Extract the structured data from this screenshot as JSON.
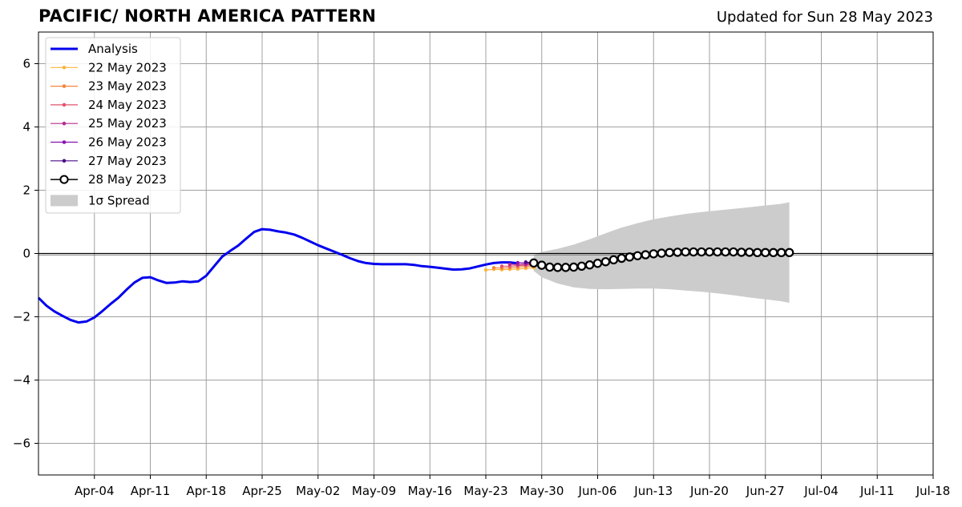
{
  "header": {
    "title": "PACIFIC/ NORTH AMERICA PATTERN",
    "updated": "Updated for Sun 28 May 2023"
  },
  "chart_data": {
    "type": "line",
    "title": "PACIFIC/ NORTH AMERICA PATTERN",
    "subtitle": "Updated for Sun 28 May 2023",
    "xlabel": "",
    "ylabel": "",
    "x_unit": "date",
    "xlim": [
      "2023-03-28",
      "2023-07-18"
    ],
    "ylim": [
      -7,
      7
    ],
    "x_ticks": [
      "Apr-04",
      "Apr-11",
      "Apr-18",
      "Apr-25",
      "May-02",
      "May-09",
      "May-16",
      "May-23",
      "May-30",
      "Jun-06",
      "Jun-13",
      "Jun-20",
      "Jun-27",
      "Jul-04",
      "Jul-11",
      "Jul-18"
    ],
    "x_tick_dates": [
      "2023-04-04",
      "2023-04-11",
      "2023-04-18",
      "2023-04-25",
      "2023-05-02",
      "2023-05-09",
      "2023-05-16",
      "2023-05-23",
      "2023-05-30",
      "2023-06-06",
      "2023-06-13",
      "2023-06-20",
      "2023-06-27",
      "2023-07-04",
      "2023-07-11",
      "2023-07-18"
    ],
    "y_ticks": [
      6,
      4,
      2,
      0,
      -2,
      -4,
      -6
    ],
    "y_tick_labels": [
      "6",
      "4",
      "2",
      "0",
      "−2",
      "−4",
      "−6"
    ],
    "grid": true,
    "legend_position": "top-left",
    "zero_line": 0,
    "series": [
      {
        "name": "Analysis",
        "color": "#0000ee",
        "x": [
          "2023-03-28",
          "2023-03-29",
          "2023-03-30",
          "2023-03-31",
          "2023-04-01",
          "2023-04-02",
          "2023-04-03",
          "2023-04-04",
          "2023-04-05",
          "2023-04-06",
          "2023-04-07",
          "2023-04-08",
          "2023-04-09",
          "2023-04-10",
          "2023-04-11",
          "2023-04-12",
          "2023-04-13",
          "2023-04-14",
          "2023-04-15",
          "2023-04-16",
          "2023-04-17",
          "2023-04-18",
          "2023-04-19",
          "2023-04-20",
          "2023-04-21",
          "2023-04-22",
          "2023-04-23",
          "2023-04-24",
          "2023-04-25",
          "2023-04-26",
          "2023-04-27",
          "2023-04-28",
          "2023-04-29",
          "2023-04-30",
          "2023-05-01",
          "2023-05-02",
          "2023-05-03",
          "2023-05-04",
          "2023-05-05",
          "2023-05-06",
          "2023-05-07",
          "2023-05-08",
          "2023-05-09",
          "2023-05-10",
          "2023-05-11",
          "2023-05-12",
          "2023-05-13",
          "2023-05-14",
          "2023-05-15",
          "2023-05-16",
          "2023-05-17",
          "2023-05-18",
          "2023-05-19",
          "2023-05-20",
          "2023-05-21",
          "2023-05-22",
          "2023-05-23",
          "2023-05-24",
          "2023-05-25",
          "2023-05-26",
          "2023-05-27"
        ],
        "values": [
          -1.4,
          -1.65,
          -1.83,
          -1.97,
          -2.1,
          -2.18,
          -2.15,
          -2.02,
          -1.82,
          -1.6,
          -1.4,
          -1.15,
          -0.92,
          -0.77,
          -0.75,
          -0.85,
          -0.93,
          -0.92,
          -0.88,
          -0.9,
          -0.88,
          -0.7,
          -0.4,
          -0.1,
          0.08,
          0.25,
          0.47,
          0.68,
          0.77,
          0.75,
          0.7,
          0.66,
          0.6,
          0.5,
          0.38,
          0.26,
          0.16,
          0.06,
          -0.04,
          -0.15,
          -0.24,
          -0.3,
          -0.33,
          -0.34,
          -0.34,
          -0.34,
          -0.34,
          -0.36,
          -0.4,
          -0.42,
          -0.45,
          -0.48,
          -0.51,
          -0.5,
          -0.47,
          -0.41,
          -0.35,
          -0.3,
          -0.28,
          -0.28,
          -0.31
        ]
      },
      {
        "name": "22 May 2023",
        "color": "#fdb43d",
        "x": [
          "2023-05-23",
          "2023-05-24",
          "2023-05-25",
          "2023-05-26",
          "2023-05-27",
          "2023-05-28",
          "2023-05-29"
        ],
        "values": [
          -0.52,
          -0.5,
          -0.51,
          -0.5,
          -0.49,
          -0.47,
          -0.45
        ]
      },
      {
        "name": "23 May 2023",
        "color": "#f5853d",
        "x": [
          "2023-05-24",
          "2023-05-25",
          "2023-05-26",
          "2023-05-27",
          "2023-05-28",
          "2023-05-29"
        ],
        "values": [
          -0.45,
          -0.46,
          -0.45,
          -0.43,
          -0.41,
          -0.4
        ]
      },
      {
        "name": "24 May 2023",
        "color": "#e3546e",
        "x": [
          "2023-05-25",
          "2023-05-26",
          "2023-05-27",
          "2023-05-28",
          "2023-05-29"
        ],
        "values": [
          -0.4,
          -0.4,
          -0.38,
          -0.37,
          -0.36
        ]
      },
      {
        "name": "25 May 2023",
        "color": "#b52b8f",
        "x": [
          "2023-05-26",
          "2023-05-27",
          "2023-05-28",
          "2023-05-29"
        ],
        "values": [
          -0.34,
          -0.35,
          -0.34,
          -0.33
        ]
      },
      {
        "name": "26 May 2023",
        "color": "#8a12b0",
        "x": [
          "2023-05-27",
          "2023-05-28",
          "2023-05-29"
        ],
        "values": [
          -0.29,
          -0.3,
          -0.3
        ]
      },
      {
        "name": "27 May 2023",
        "color": "#4a0a8c",
        "x": [
          "2023-05-28",
          "2023-05-29"
        ],
        "values": [
          -0.27,
          -0.29
        ]
      },
      {
        "name": "28 May 2023",
        "color": "#000000",
        "marker_fill": "#ffffff",
        "x": [
          "2023-05-29",
          "2023-05-30",
          "2023-05-31",
          "2023-06-01",
          "2023-06-02",
          "2023-06-03",
          "2023-06-04",
          "2023-06-05",
          "2023-06-06",
          "2023-06-07",
          "2023-06-08",
          "2023-06-09",
          "2023-06-10",
          "2023-06-11",
          "2023-06-12",
          "2023-06-13",
          "2023-06-14",
          "2023-06-15",
          "2023-06-16",
          "2023-06-17",
          "2023-06-18",
          "2023-06-19",
          "2023-06-20",
          "2023-06-21",
          "2023-06-22",
          "2023-06-23",
          "2023-06-24",
          "2023-06-25",
          "2023-06-26",
          "2023-06-27",
          "2023-06-28",
          "2023-06-29",
          "2023-06-30"
        ],
        "values": [
          -0.3,
          -0.37,
          -0.43,
          -0.44,
          -0.44,
          -0.43,
          -0.4,
          -0.36,
          -0.31,
          -0.26,
          -0.2,
          -0.15,
          -0.11,
          -0.07,
          -0.04,
          -0.01,
          0.01,
          0.03,
          0.04,
          0.05,
          0.05,
          0.05,
          0.05,
          0.05,
          0.05,
          0.05,
          0.04,
          0.04,
          0.03,
          0.03,
          0.03,
          0.03,
          0.03
        ]
      }
    ],
    "spread": {
      "name": "1σ Spread",
      "color": "#cccccc",
      "x": [
        "2023-05-29",
        "2023-05-30",
        "2023-06-01",
        "2023-06-03",
        "2023-06-05",
        "2023-06-07",
        "2023-06-09",
        "2023-06-11",
        "2023-06-13",
        "2023-06-15",
        "2023-06-17",
        "2023-06-19",
        "2023-06-21",
        "2023-06-23",
        "2023-06-25",
        "2023-06-27",
        "2023-06-29",
        "2023-06-30"
      ],
      "upper": [
        -0.05,
        0.05,
        0.15,
        0.28,
        0.45,
        0.64,
        0.82,
        0.96,
        1.08,
        1.17,
        1.25,
        1.31,
        1.36,
        1.41,
        1.46,
        1.52,
        1.57,
        1.62
      ],
      "lower": [
        -0.55,
        -0.75,
        -0.95,
        -1.07,
        -1.12,
        -1.13,
        -1.12,
        -1.11,
        -1.11,
        -1.13,
        -1.17,
        -1.21,
        -1.26,
        -1.32,
        -1.39,
        -1.45,
        -1.51,
        -1.56
      ]
    }
  }
}
